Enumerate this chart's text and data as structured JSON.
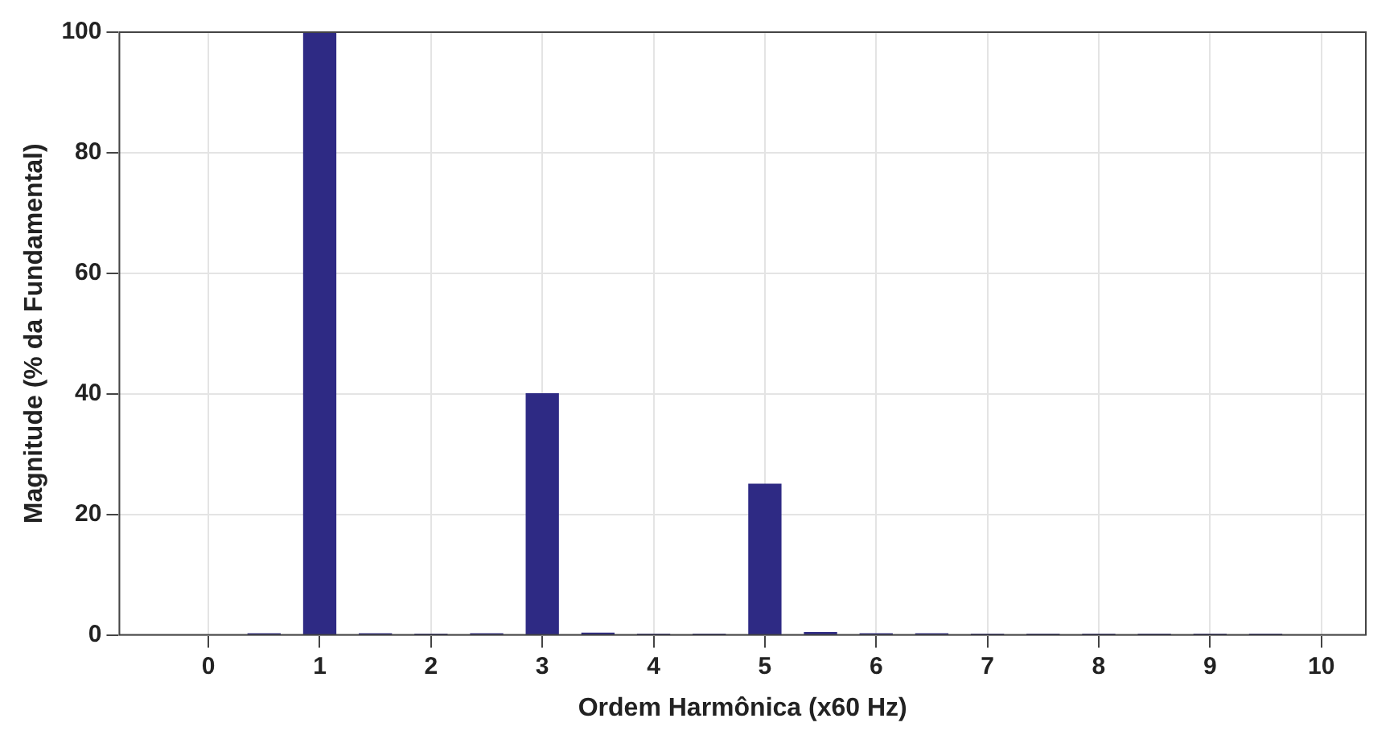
{
  "chart_data": {
    "type": "bar",
    "xlabel": "Ordem Harmônica (x60 Hz)",
    "ylabel": "Magnitude (% da Fundamental)",
    "x": [
      0.5,
      1,
      1.5,
      2,
      2.5,
      3,
      3.5,
      4,
      4.5,
      5,
      5.5,
      6,
      6.5,
      7,
      7.5,
      8,
      8.5,
      9,
      9.5
    ],
    "values": [
      0.2,
      100,
      0.2,
      0.1,
      0.2,
      40,
      0.3,
      0.1,
      0.1,
      25,
      0.4,
      0.2,
      0.2,
      0.1,
      0.1,
      0.1,
      0.1,
      0.1,
      0.1
    ],
    "color": "#2e2a84",
    "xlim": [
      -0.8,
      10.4
    ],
    "xticks": [
      0,
      1,
      2,
      3,
      4,
      5,
      6,
      7,
      8,
      9,
      10
    ],
    "ylim": [
      0,
      100
    ],
    "yticks": [
      0,
      20,
      40,
      60,
      80,
      100
    ],
    "grid": true
  }
}
